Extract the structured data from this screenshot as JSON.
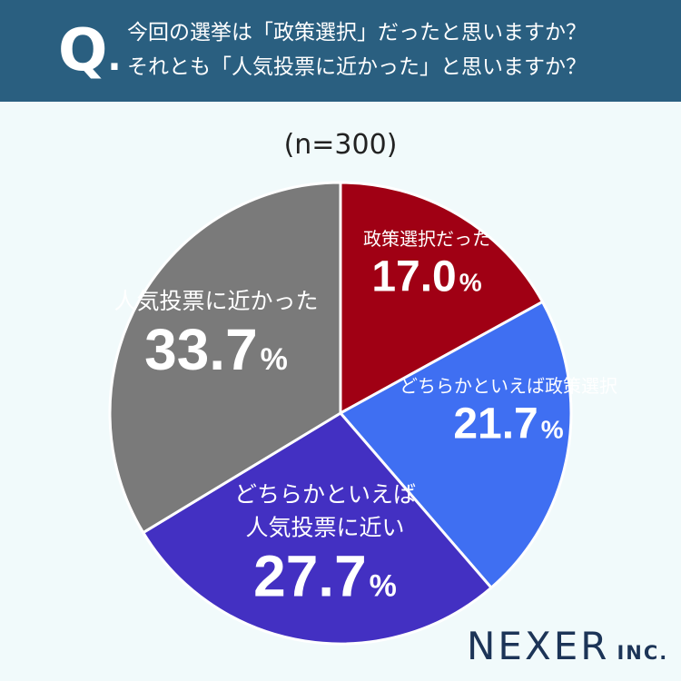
{
  "header": {
    "q_letter": "Q",
    "q_dot": ".",
    "question_line1": "今回の選挙は「政策選択」だったと思いますか？",
    "question_line2": "それとも「人気投票に近かった」と思いますか？"
  },
  "sample_note": "(n=300)",
  "chart_data": {
    "type": "pie",
    "title": "",
    "start": "12 o'clock, clockwise",
    "slices": [
      {
        "label": "政策選択だった",
        "label_lines": [
          "政策選択だった"
        ],
        "value": 17.0,
        "display": "17.0",
        "color": "#a00014"
      },
      {
        "label": "どちらかといえば政策選択",
        "label_lines": [
          "どちらかといえば政策選択"
        ],
        "value": 21.7,
        "display": "21.7",
        "color": "#3f6ff2"
      },
      {
        "label": "どちらかといえば人気投票に近い",
        "label_lines": [
          "どちらかといえば",
          "人気投票に近い"
        ],
        "value": 27.7,
        "display": "27.7",
        "color": "#4330c2"
      },
      {
        "label": "人気投票に近かった",
        "label_lines": [
          "人気投票に近かった"
        ],
        "value": 33.7,
        "display": "33.7",
        "color": "#7a7a7a"
      }
    ],
    "unit": "%"
  },
  "logo": {
    "main": "NEXER",
    "sub": "INC."
  }
}
